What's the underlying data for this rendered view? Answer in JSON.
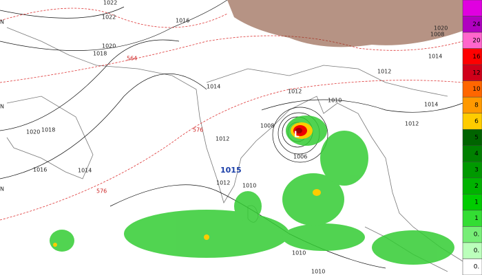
{
  "map": {
    "lat_labels": [
      "N",
      "N",
      "N"
    ],
    "isobar_labels": [
      "1022",
      "1022",
      "1016",
      "1020",
      "1018",
      "1014",
      "1012",
      "1010",
      "1012",
      "1014",
      "1008",
      "1020",
      "1012",
      "1008",
      "1020",
      "1018",
      "1016",
      "1014",
      "1012",
      "1010",
      "1014",
      "1012",
      "1006",
      "1010",
      "1010"
    ],
    "height_labels": [
      "564",
      "576",
      "576"
    ],
    "high_label": "1015",
    "low_label": "L",
    "colorbar_labels": [
      "24",
      "20",
      "16",
      "12",
      "10",
      "8",
      "6",
      "5",
      "4",
      "3",
      "2",
      "1",
      "1",
      "0.",
      "0.",
      "0."
    ]
  }
}
